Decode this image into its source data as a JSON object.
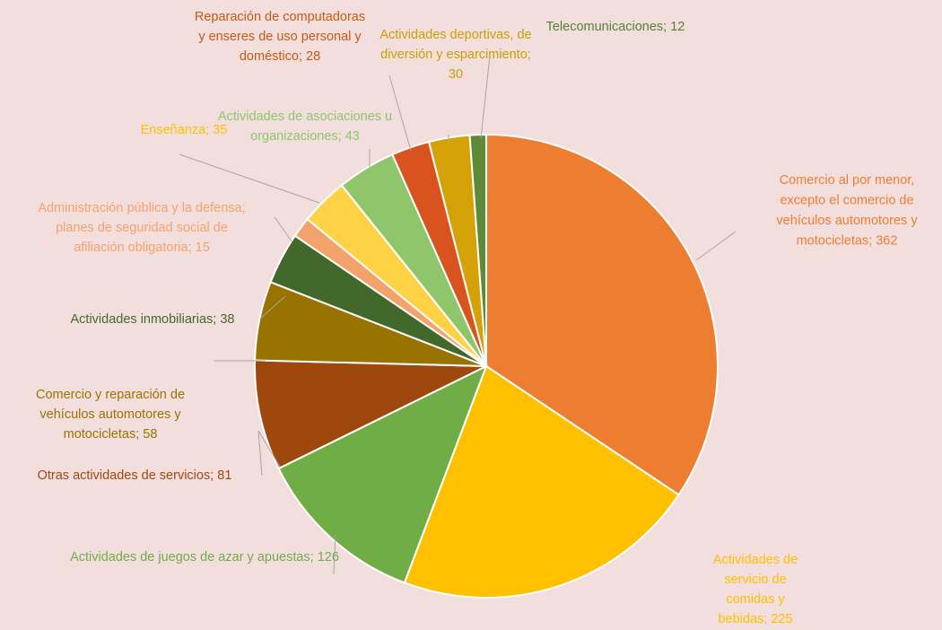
{
  "chart_data": {
    "type": "pie",
    "title": "",
    "start_angle_deg": 0,
    "direction": "clockwise",
    "slices": [
      {
        "label": "Comercio al por menor, excepto el comercio de vehículos automotores y motocicletas; 362",
        "lines": [
          "Comercio al por menor,",
          "excepto el comercio de",
          "vehículos automotores y",
          "motocicletas; 362"
        ],
        "value": 362,
        "color": "#ed7d31",
        "label_color": "#ed7d31"
      },
      {
        "label": "Actividades de servicio de comidas y bebidas; 225",
        "lines": [
          "Actividades de",
          "servicio de",
          "comidas y",
          "bebidas; 225"
        ],
        "value": 225,
        "color": "#ffc000",
        "label_color": "#ffc000"
      },
      {
        "label": "Actividades de juegos de azar y apuestas; 126",
        "lines": [
          "Actividades de juegos de azar y apuestas; 126"
        ],
        "value": 126,
        "color": "#70ad47",
        "label_color": "#70ad47"
      },
      {
        "label": "Otras actividades de servicios; 81",
        "lines": [
          "Otras actividades de servicios; 81"
        ],
        "value": 81,
        "color": "#9e480e",
        "label_color": "#9e480e"
      },
      {
        "label": "Comercio y reparación de vehículos automotores y motocicletas; 58",
        "lines": [
          "Comercio y reparación de",
          "vehículos automotores y",
          "motocicletas; 58"
        ],
        "value": 58,
        "color": "#997300",
        "label_color": "#997300"
      },
      {
        "label": "Actividades inmobiliarias; 38",
        "lines": [
          "Actividades inmobiliarias; 38"
        ],
        "value": 38,
        "color": "#43682b",
        "label_color": "#43682b"
      },
      {
        "label": "Administración pública y la defensa; planes de seguridad social de afiliación obligatoria; 15",
        "lines": [
          "Administración pública y la defensa;",
          "planes de seguridad social de",
          "afiliación obligatoria; 15"
        ],
        "value": 15,
        "color": "#f4a26c",
        "label_color": "#f4a26c"
      },
      {
        "label": "Enseñanza; 35",
        "lines": [
          "Enseñanza; 35"
        ],
        "value": 35,
        "color": "#ffd246",
        "label_color": "#ffc000"
      },
      {
        "label": "Actividades de asociaciones u organizaciones; 43",
        "lines": [
          "Actividades de asociaciones u",
          "organizaciones; 43"
        ],
        "value": 43,
        "color": "#8fc66c",
        "label_color": "#8fc66c"
      },
      {
        "label": "Reparación de computadoras y enseres de uso personal y doméstico; 28",
        "lines": [
          "Reparación de computadoras",
          "y enseres de uso personal y",
          "doméstico; 28"
        ],
        "value": 28,
        "color": "#d9531e",
        "label_color": "#c55a11"
      },
      {
        "label": "Actividades deportivas, de diversión y esparcimiento; 30",
        "lines": [
          "Actividades deportivas, de",
          "diversión y esparcimiento;",
          "30"
        ],
        "value": 30,
        "color": "#d4a106",
        "label_color": "#c9a000"
      },
      {
        "label": "Telecomunicaciones; 12",
        "lines": [
          "Telecomunicaciones; 12"
        ],
        "value": 12,
        "color": "#5f8a3a",
        "label_color": "#548235"
      }
    ]
  }
}
